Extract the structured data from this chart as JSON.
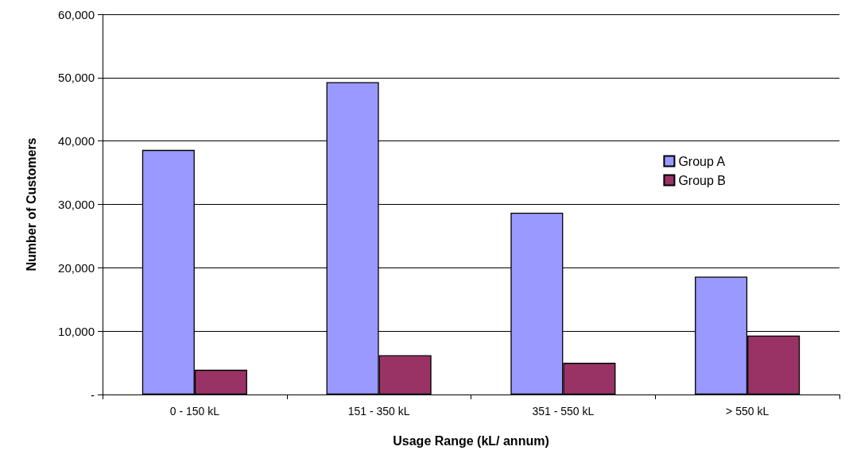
{
  "chart_data": {
    "type": "bar",
    "xlabel": "Usage Range (kL/ annum)",
    "ylabel": "Number of Customers",
    "categories": [
      "0 - 150 kL",
      "151 - 350 kL",
      "351 - 550 kL",
      "> 550 kL"
    ],
    "series": [
      {
        "name": "Group A",
        "color": "#9999ff",
        "values": [
          38600,
          49300,
          28700,
          18600
        ]
      },
      {
        "name": "Group B",
        "color": "#993366",
        "values": [
          3900,
          6200,
          5000,
          9300
        ]
      }
    ],
    "ylim": [
      0,
      60000
    ],
    "yticks": [
      {
        "value": 0,
        "label": "-"
      },
      {
        "value": 10000,
        "label": "10,000"
      },
      {
        "value": 20000,
        "label": "20,000"
      },
      {
        "value": 30000,
        "label": "30,000"
      },
      {
        "value": 40000,
        "label": "40,000"
      },
      {
        "value": 50000,
        "label": "50,000"
      },
      {
        "value": 60000,
        "label": "60,000"
      }
    ],
    "grid": "y",
    "legend": "right"
  }
}
